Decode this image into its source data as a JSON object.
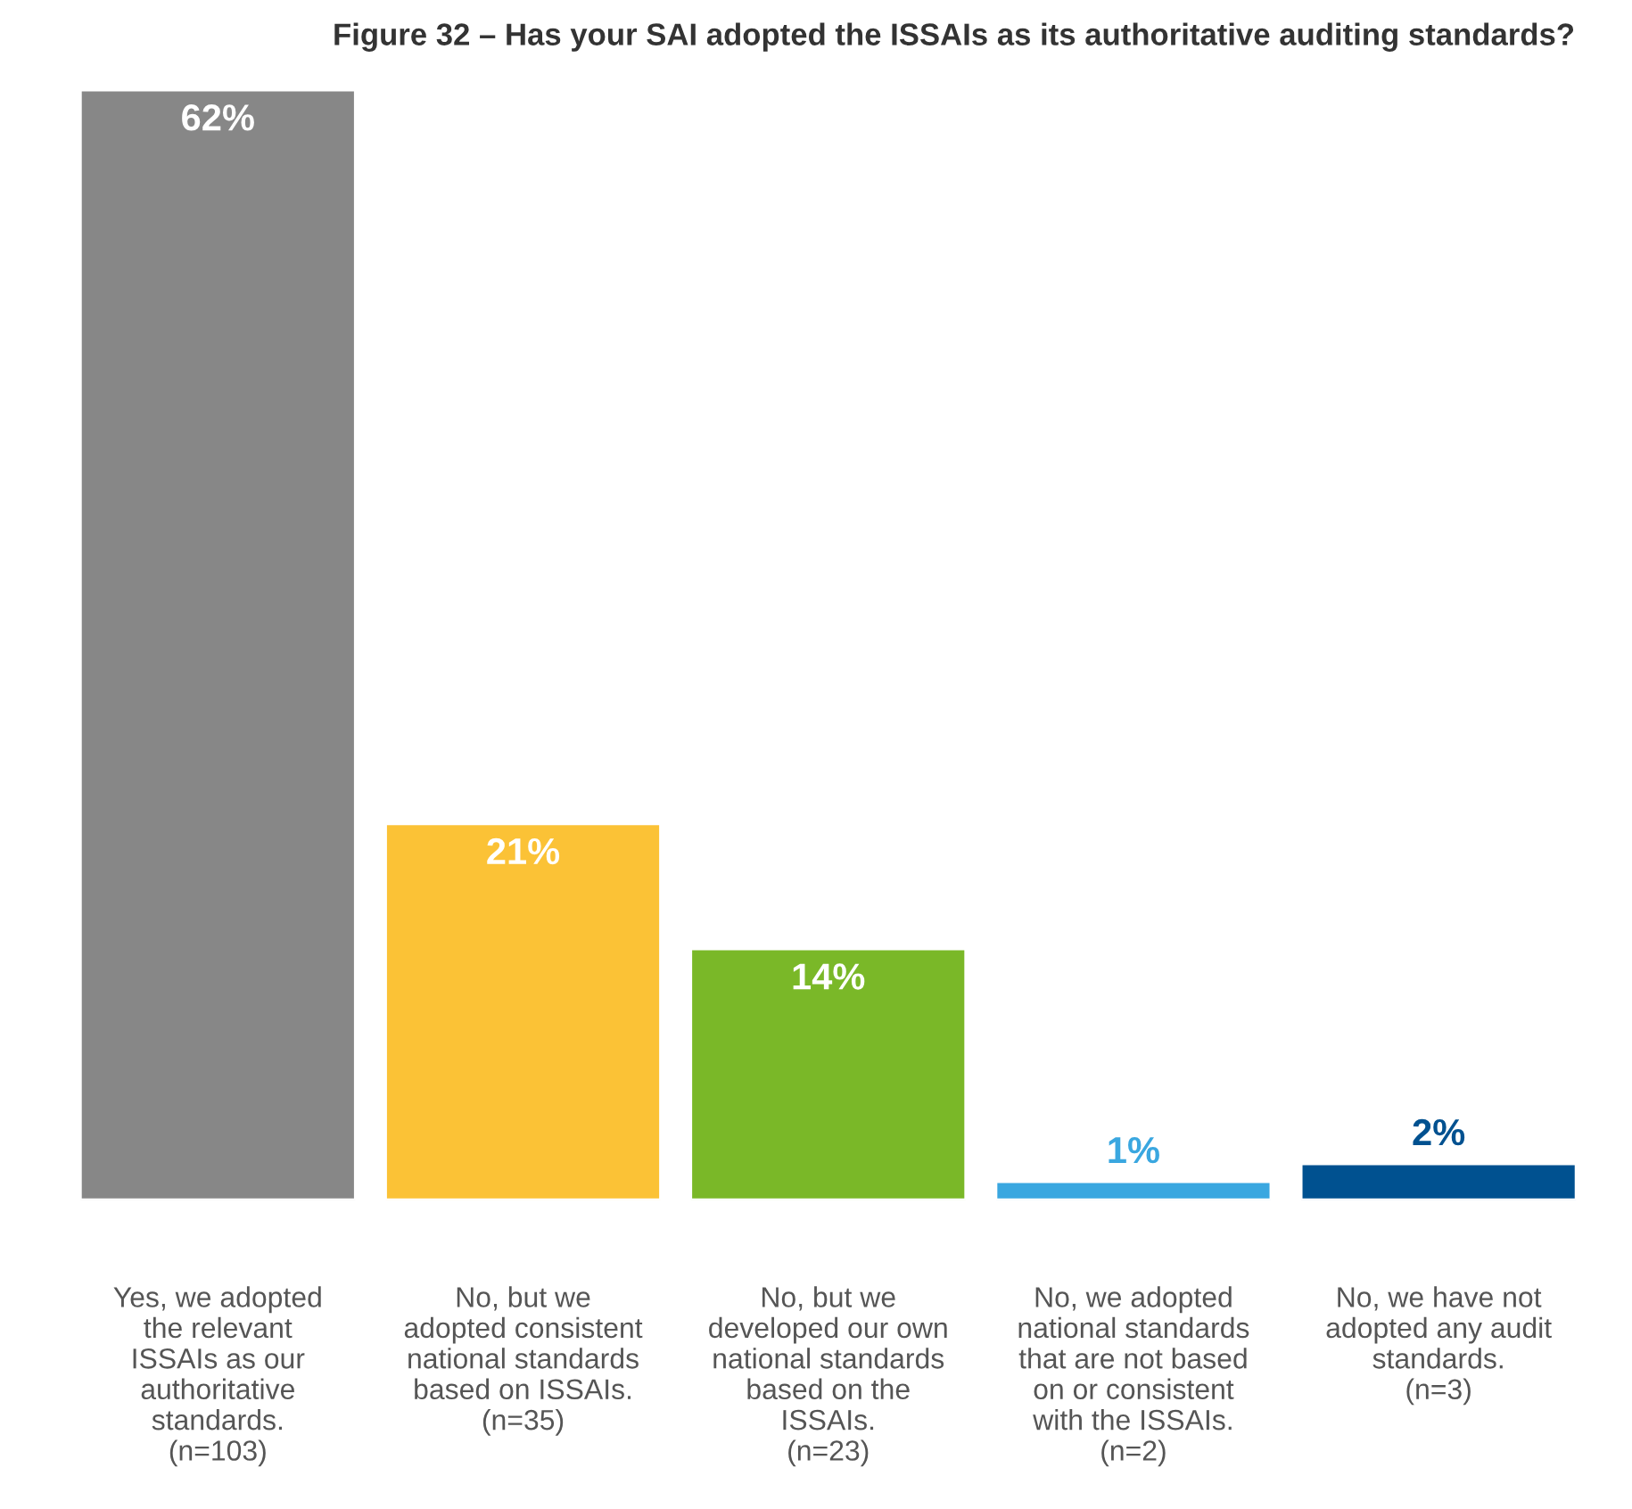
{
  "chart_data": {
    "type": "bar",
    "title": "Figure 32 – Has your SAI adopted the ISSAIs as its authoritative auditing standards?",
    "categories": [
      "Yes, we adopted\nthe relevant\nISSAIs as our\nauthoritative\nstandards.\n(n=103)",
      "No, but we\nadopted consistent\nnational standards\nbased on ISSAIs.\n(n=35)",
      "No, but we\ndeveloped our own\nnational standards\nbased on the\nISSAIs.\n(n=23)",
      "No, we adopted\nnational standards\nthat are not based\non or consistent\nwith the ISSAIs.\n(n=2)",
      "No, we have not\nadopted any audit\nstandards.\n(n=3)"
    ],
    "values": [
      62,
      21,
      14,
      1,
      2
    ],
    "colors": [
      "#878787",
      "#fbc236",
      "#7ab828",
      "#3aa7e0",
      "#005190"
    ],
    "value_labels": [
      "62%",
      "21%",
      "14%",
      "1%",
      "2%"
    ],
    "grid": false
  }
}
